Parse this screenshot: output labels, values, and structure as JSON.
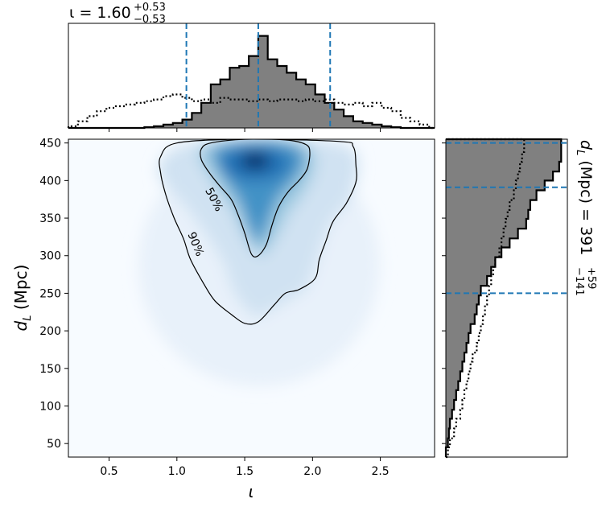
{
  "chart_data": [
    {
      "type": "heatmap",
      "panel": "joint",
      "xlabel": "ι",
      "ylabel": "d_L (Mpc)",
      "xlim": [
        0.2,
        2.9
      ],
      "ylim": [
        32,
        455
      ],
      "xticks": [
        0.5,
        1.0,
        1.5,
        2.0,
        2.5
      ],
      "xtick_labels": [
        "0.5",
        "1.0",
        "1.5",
        "2.0",
        "2.5"
      ],
      "yticks": [
        50,
        100,
        150,
        200,
        250,
        300,
        350,
        400,
        450
      ],
      "ytick_labels": [
        "50",
        "100",
        "150",
        "200",
        "250",
        "300",
        "350",
        "400",
        "450"
      ],
      "colormap": "Blues",
      "density_peak": {
        "x": 1.56,
        "y": 425
      },
      "contours": [
        {
          "label": "50%",
          "points": [
            [
              1.18,
              442
            ],
            [
              1.25,
              450
            ],
            [
              1.5,
              455
            ],
            [
              1.8,
              454
            ],
            [
              1.95,
              448
            ],
            [
              1.98,
              437
            ],
            [
              1.96,
              415
            ],
            [
              1.9,
              400
            ],
            [
              1.82,
              385
            ],
            [
              1.75,
              365
            ],
            [
              1.7,
              340
            ],
            [
              1.66,
              315
            ],
            [
              1.6,
              300
            ],
            [
              1.55,
              302
            ],
            [
              1.5,
              330
            ],
            [
              1.45,
              355
            ],
            [
              1.4,
              375
            ],
            [
              1.32,
              392
            ],
            [
              1.24,
              410
            ],
            [
              1.18,
              428
            ]
          ]
        },
        {
          "label": "90%",
          "points": [
            [
              0.88,
              432
            ],
            [
              1.0,
              450
            ],
            [
              1.5,
              455
            ],
            [
              2.2,
              452
            ],
            [
              2.3,
              445
            ],
            [
              2.32,
              420
            ],
            [
              2.32,
              398
            ],
            [
              2.25,
              370
            ],
            [
              2.15,
              345
            ],
            [
              2.1,
              320
            ],
            [
              2.05,
              295
            ],
            [
              2.02,
              270
            ],
            [
              1.9,
              255
            ],
            [
              1.8,
              250
            ],
            [
              1.72,
              235
            ],
            [
              1.6,
              212
            ],
            [
              1.5,
              210
            ],
            [
              1.4,
              222
            ],
            [
              1.28,
              240
            ],
            [
              1.2,
              262
            ],
            [
              1.1,
              295
            ],
            [
              1.05,
              322
            ],
            [
              0.98,
              350
            ],
            [
              0.92,
              380
            ],
            [
              0.88,
              410
            ]
          ]
        }
      ]
    },
    {
      "type": "bar",
      "panel": "top-marginal",
      "title": "ι = 1.60 +0.53 −0.53",
      "title_main": "ι = 1.60",
      "title_sup": "+0.53",
      "title_sub": "−0.53",
      "x_edges": [
        0.2,
        0.27,
        0.34,
        0.41,
        0.48,
        0.55,
        0.62,
        0.69,
        0.76,
        0.83,
        0.9,
        0.97,
        1.04,
        1.11,
        1.18,
        1.25,
        1.32,
        1.39,
        1.46,
        1.53,
        1.6,
        1.67,
        1.74,
        1.81,
        1.88,
        1.95,
        2.02,
        2.09,
        2.16,
        2.23,
        2.3,
        2.37,
        2.44,
        2.51,
        2.58,
        2.65,
        2.72,
        2.79,
        2.86,
        2.9
      ],
      "series": [
        {
          "style": "posterior-filled",
          "values": [
            0,
            0,
            0,
            0,
            0,
            0,
            0,
            0,
            1,
            2,
            4,
            6,
            10,
            18,
            30,
            52,
            58,
            72,
            74,
            86,
            110,
            82,
            74,
            66,
            58,
            52,
            40,
            30,
            22,
            14,
            8,
            6,
            4,
            2,
            1,
            0,
            0,
            0,
            0
          ]
        },
        {
          "style": "prior-dotted",
          "values": [
            2,
            8,
            14,
            20,
            24,
            26,
            28,
            30,
            32,
            34,
            38,
            40,
            36,
            32,
            34,
            30,
            36,
            34,
            34,
            32,
            34,
            32,
            34,
            34,
            32,
            34,
            32,
            34,
            30,
            28,
            30,
            26,
            30,
            24,
            20,
            12,
            8,
            4,
            0
          ]
        }
      ],
      "ymax": 125,
      "quantiles": [
        1.07,
        1.6,
        2.13
      ]
    },
    {
      "type": "bar",
      "panel": "right-marginal",
      "title": "d_L (Mpc) = 391 +59 −141",
      "title_main": "(Mpc) = 391",
      "title_sup": "+59",
      "title_sub": "−141",
      "orientation": "horizontal",
      "y_edges": [
        32,
        45,
        57,
        70,
        83,
        95,
        108,
        121,
        133,
        146,
        159,
        171,
        184,
        197,
        209,
        222,
        235,
        247,
        260,
        273,
        285,
        298,
        311,
        323,
        336,
        349,
        361,
        374,
        387,
        400,
        412,
        425,
        438,
        455
      ],
      "series": [
        {
          "style": "posterior-filled",
          "values": [
            0,
            2,
            3,
            4,
            6,
            8,
            10,
            12,
            14,
            16,
            18,
            20,
            22,
            24,
            28,
            30,
            32,
            34,
            40,
            44,
            48,
            54,
            62,
            70,
            78,
            80,
            82,
            88,
            96,
            104,
            110,
            112,
            112
          ]
        },
        {
          "style": "prior-dotted",
          "values": [
            2,
            4,
            8,
            10,
            14,
            16,
            18,
            20,
            22,
            24,
            26,
            30,
            32,
            34,
            36,
            38,
            40,
            42,
            44,
            46,
            48,
            52,
            54,
            56,
            58,
            60,
            62,
            66,
            68,
            70,
            72,
            74,
            76
          ]
        }
      ],
      "xmax": 118,
      "quantiles": [
        250,
        391,
        450
      ]
    }
  ]
}
